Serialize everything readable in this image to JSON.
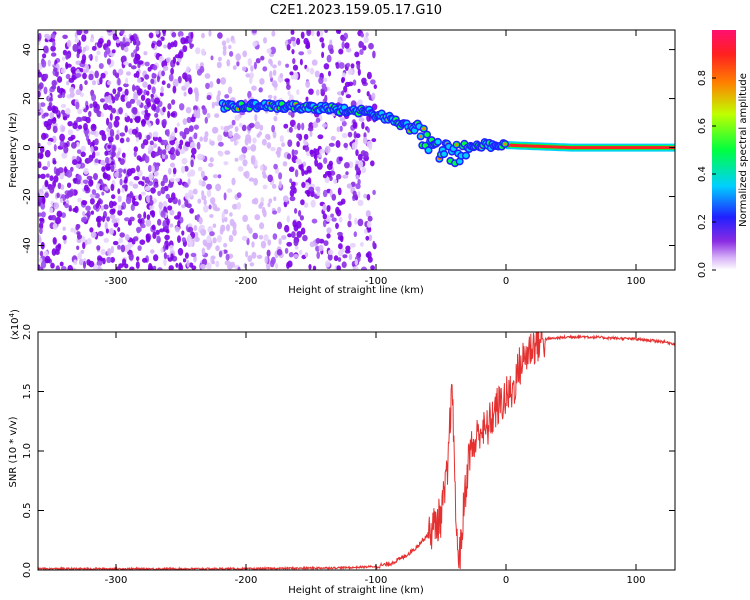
{
  "title": "C2E1.2023.159.05.17.G10",
  "chart_data": [
    {
      "type": "heatmap",
      "xlabel": "Height of straight line (km)",
      "ylabel": "Frequency (Hz)",
      "xlim": [
        -360,
        130
      ],
      "ylim": [
        -50,
        48
      ],
      "xticks": [
        "-300",
        "-200",
        "-100",
        "0",
        "100"
      ],
      "yticks": [
        "40",
        "20",
        "0",
        "-20",
        "-40"
      ],
      "colorbar": {
        "label": "Normalized spectral amplitude",
        "range": [
          0,
          1
        ],
        "ticks": [
          "0.0",
          "0.2",
          "0.4",
          "0.6",
          "0.8"
        ]
      },
      "signal_track": [
        {
          "height_km": -218,
          "frequency_hz": 17
        },
        {
          "height_km": -180,
          "frequency_hz": 17
        },
        {
          "height_km": -140,
          "frequency_hz": 16
        },
        {
          "height_km": -110,
          "frequency_hz": 15
        },
        {
          "height_km": -90,
          "frequency_hz": 12
        },
        {
          "height_km": -70,
          "frequency_hz": 7
        },
        {
          "height_km": -55,
          "frequency_hz": 0
        },
        {
          "height_km": -40,
          "frequency_hz": -3
        },
        {
          "height_km": -20,
          "frequency_hz": 1
        },
        {
          "height_km": 0,
          "frequency_hz": 1
        },
        {
          "height_km": 50,
          "frequency_hz": 0
        },
        {
          "height_km": 130,
          "frequency_hz": 0
        }
      ]
    },
    {
      "type": "line",
      "xlabel": "Height of straight line (km)",
      "ylabel": "SNR (10 * v/v)",
      "scale_label": "(x10",
      "scale_exponent": "4",
      "scale_suffix": ")",
      "xlim": [
        -360,
        130
      ],
      "ylim": [
        0,
        2.0
      ],
      "xticks": [
        "-300",
        "-200",
        "-100",
        "0",
        "100"
      ],
      "yticks": [
        "2.0",
        "1.5",
        "1.0",
        "0.5",
        "0.0"
      ],
      "line_color": "#e53030",
      "series": [
        {
          "x": [
            -360,
            -200,
            -120,
            -100,
            -90,
            -80,
            -70,
            -60,
            -50,
            -45,
            -42,
            -40,
            -38,
            -35,
            -32,
            -28,
            -24,
            -20,
            -16,
            -12,
            -8,
            -4,
            0,
            5,
            10,
            15,
            20,
            25,
            30,
            40,
            50,
            60,
            80,
            100,
            120,
            130
          ],
          "y": [
            0.01,
            0.01,
            0.02,
            0.03,
            0.05,
            0.1,
            0.18,
            0.3,
            0.45,
            0.8,
            1.5,
            1.1,
            0.2,
            0.15,
            0.6,
            1.0,
            1.05,
            1.2,
            1.15,
            1.25,
            1.35,
            1.4,
            1.45,
            1.5,
            1.7,
            1.8,
            1.88,
            1.92,
            1.94,
            1.95,
            1.96,
            1.96,
            1.95,
            1.94,
            1.92,
            1.9
          ]
        }
      ]
    }
  ]
}
